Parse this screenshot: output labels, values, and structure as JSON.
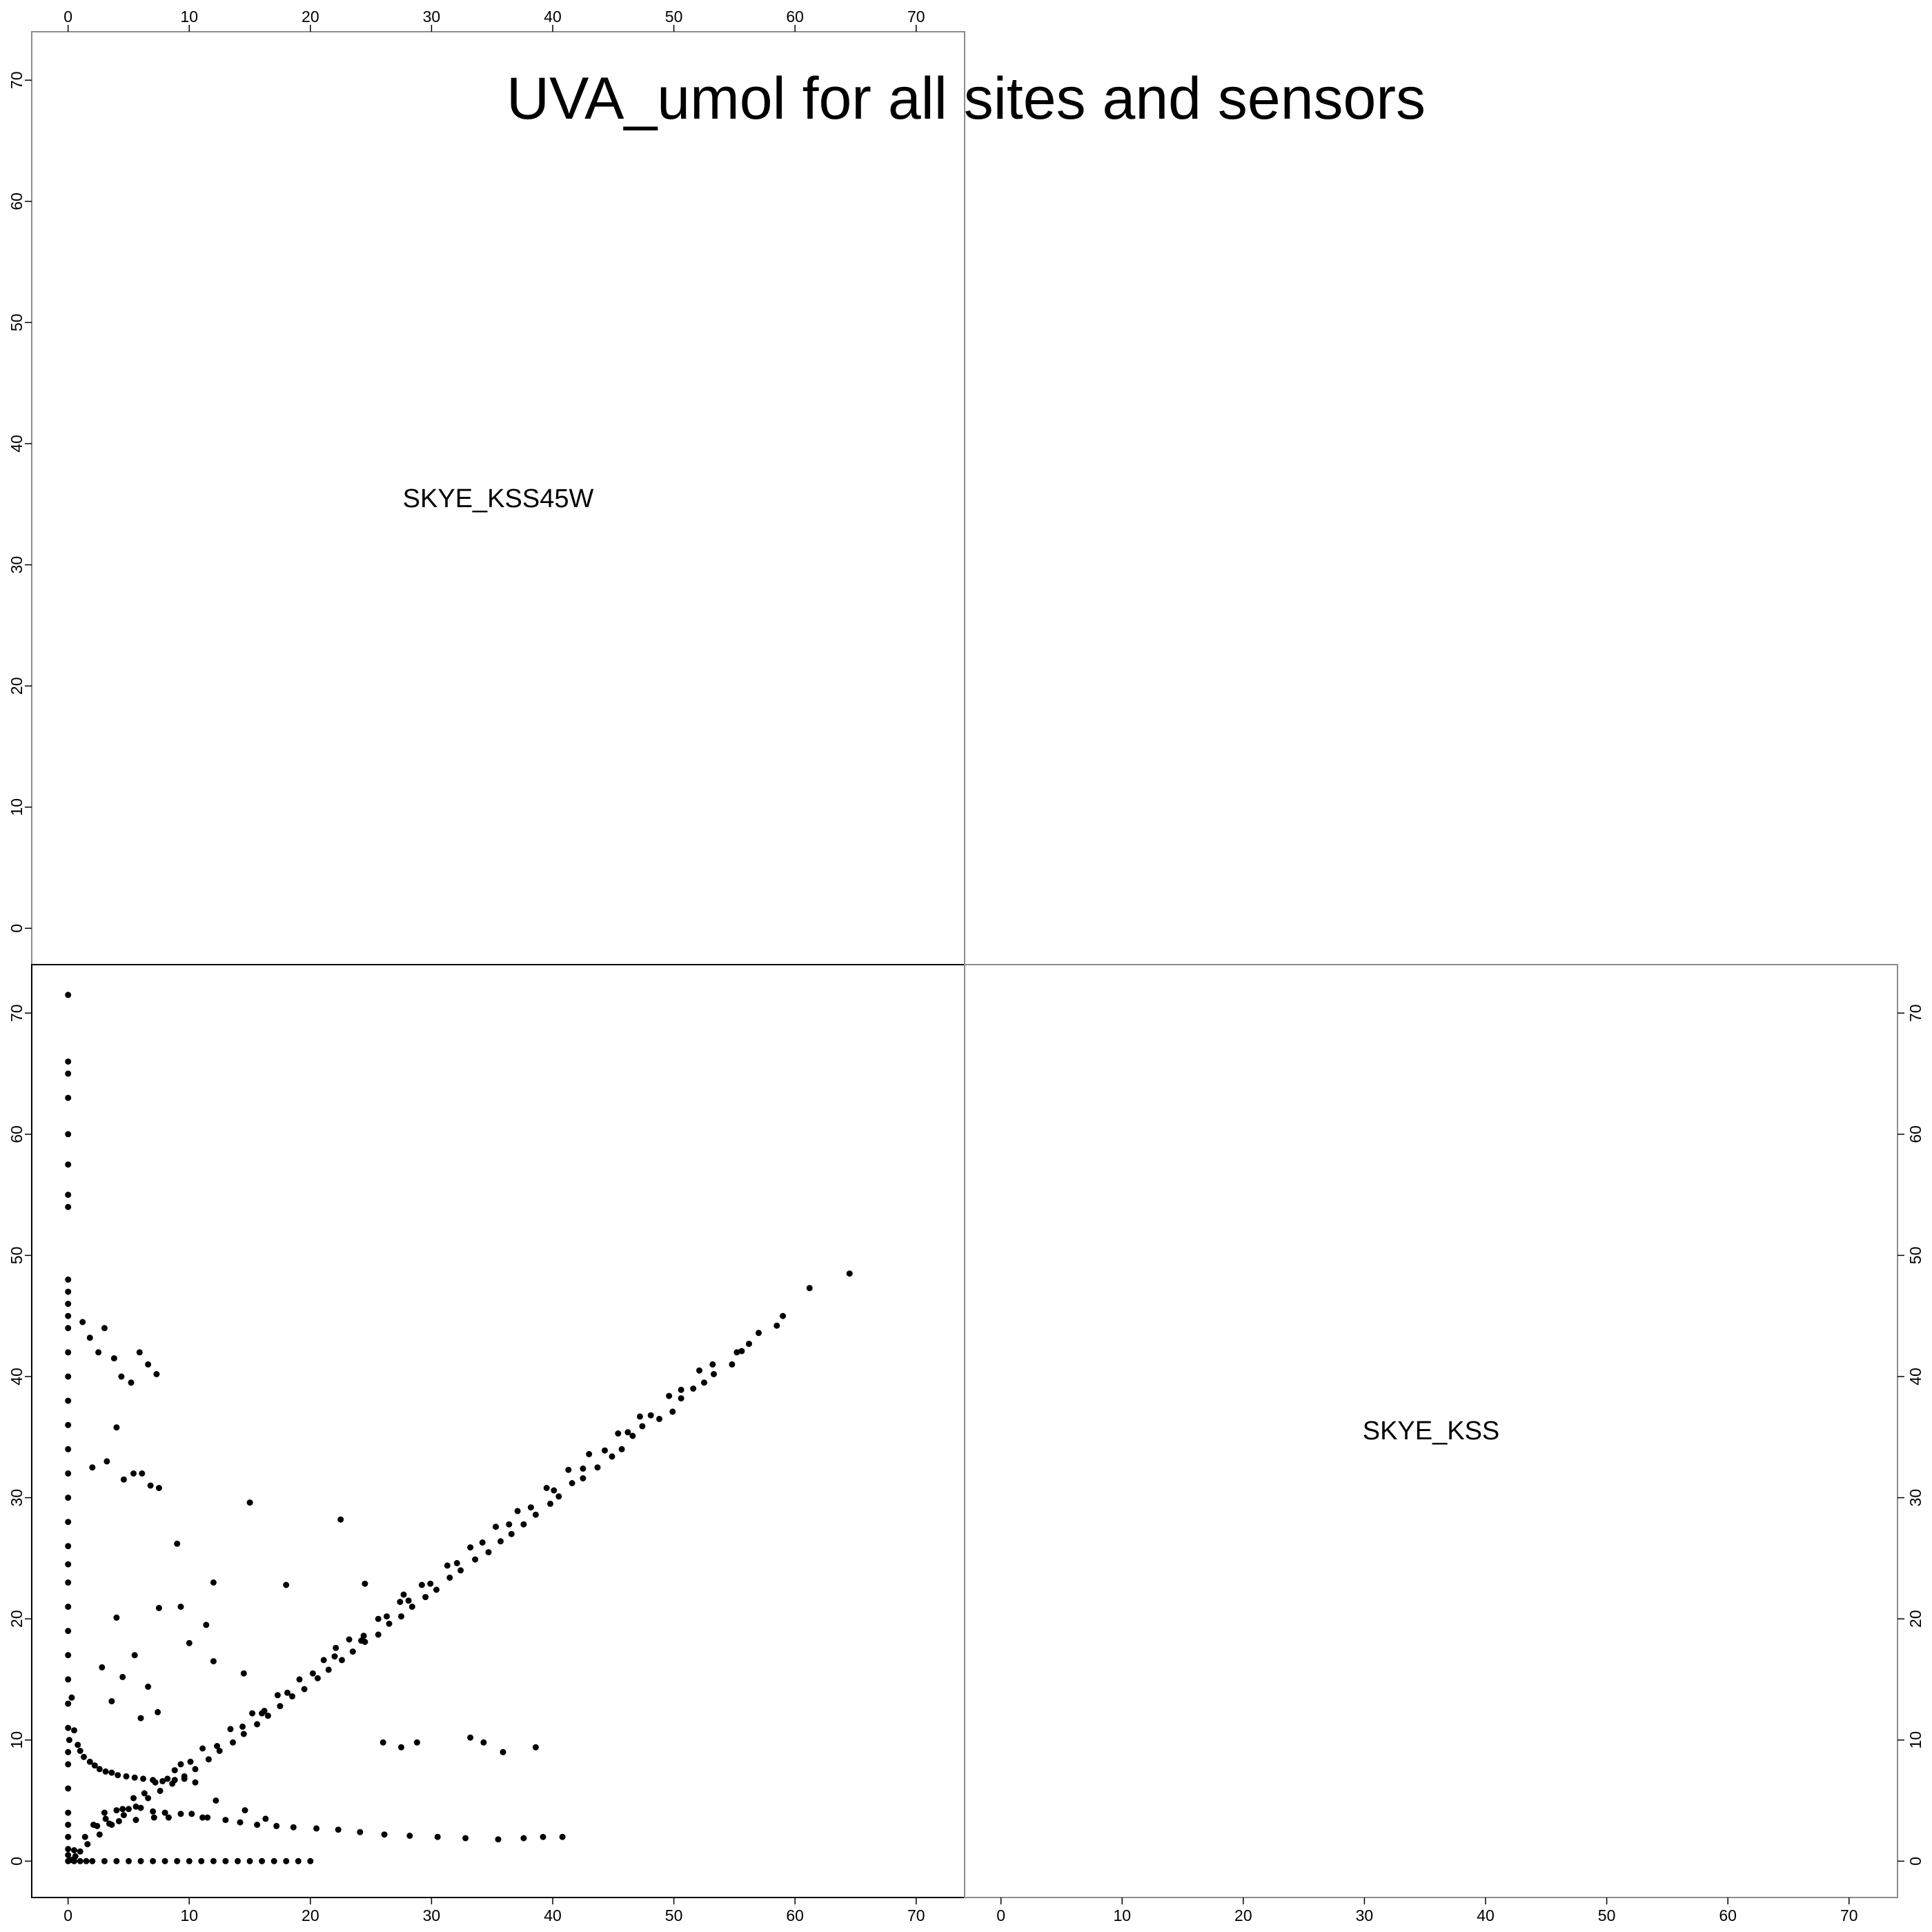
{
  "chart_data": {
    "type": "scatter",
    "title": "UVA_umol for all sites and sensors",
    "layout": "scatterplot-matrix",
    "variables": [
      "SKYE_KSS45W",
      "SKYE_KSS"
    ],
    "axis_range": [
      -3,
      74
    ],
    "ticks": [
      0,
      10,
      20,
      30,
      40,
      50,
      60,
      70
    ],
    "tick_labels": [
      "0",
      "10",
      "20",
      "30",
      "40",
      "50",
      "60",
      "70"
    ],
    "grid": false,
    "panels": [
      {
        "name": "SKYE_KSS (x) vs SKYE_KSS45W (y)",
        "x_variable": "SKYE_KSS",
        "y_variable": "SKYE_KSS45W",
        "point_color": "#000000",
        "x": [
          64.5,
          61.2,
          59.0,
          58.5,
          57.0,
          56.2,
          55.6,
          54.8,
          53.3,
          52.5,
          51.6,
          50.6,
          49.9,
          48.8,
          47.4,
          46.6,
          45.7,
          44.9,
          43.7,
          42.5,
          41.6,
          40.5,
          39.8,
          38.6,
          37.6,
          36.6,
          35.7,
          34.7,
          33.6,
          32.4,
          31.5,
          30.4,
          29.5,
          28.4,
          27.5,
          26.5,
          25.6,
          24.5,
          23.5,
          22.6,
          21.5,
          20.6,
          19.5,
          18.5,
          17.5,
          16.5,
          15.6,
          14.5,
          13.6,
          12.5,
          11.6,
          10.5,
          9.6,
          8.6,
          7.6,
          6.6,
          5.6,
          4.6,
          3.6,
          2.6,
          1.6,
          1.0,
          0.6,
          0.3,
          53.2,
          50.6,
          48.1,
          46.2,
          44.3,
          42.5,
          40.1,
          38.2,
          36.4,
          34.2,
          32.1,
          29.9,
          28.1,
          26.3,
          24.4,
          22.0,
          20.2,
          18.1,
          16.2,
          14.4,
          12.3,
          10.1,
          8.2,
          6.3,
          4.5,
          2.4,
          55.2,
          52.1,
          49.6,
          47.2,
          45.4,
          43.0,
          41.3,
          39.5,
          37.1,
          35.3,
          33.2,
          31.3,
          29.2,
          27.4,
          25.6,
          23.2,
          21.1,
          19.1,
          17.3,
          15.2,
          13.4,
          11.1,
          9.3,
          7.2,
          5.4,
          3.1,
          1.4,
          0.5,
          0.0,
          0.0,
          0.0,
          0.0,
          0.0,
          0.0,
          0.0,
          0.0,
          0.0,
          0.0,
          0.0,
          0.0,
          0.0,
          0.0,
          0.0,
          0.0,
          0.0,
          0.0,
          0.0,
          0.0,
          0.0,
          0.0,
          0.0,
          0.0,
          0.0,
          0.0,
          0.0,
          0.0,
          0.0,
          0.0,
          0.1,
          0.0,
          0.0,
          0.0,
          0.0,
          0.0,
          0.0,
          0.0,
          0.0,
          0.0,
          0.3,
          0.5,
          0.8,
          1.0,
          1.3,
          1.8,
          2.2,
          2.6,
          3.1,
          3.6,
          4.1,
          4.8,
          5.5,
          6.2,
          7.0,
          7.8,
          8.8,
          9.6,
          3.0,
          4.0,
          6.0,
          8.0,
          10.2,
          11.5,
          2.1,
          3.4,
          4.2,
          5.6,
          7.1,
          8.3,
          5.0,
          7.0,
          9.3,
          11.1,
          13.0,
          14.2,
          15.6,
          17.2,
          18.6,
          20.5,
          22.3,
          24.1,
          26.1,
          28.2,
          30.5,
          32.8,
          35.5,
          37.6,
          39.2,
          40.8,
          1.2,
          1.8,
          2.5,
          3.0,
          3.8,
          4.4,
          5.2,
          5.9,
          6.6,
          7.3,
          2.0,
          3.2,
          4.0,
          4.6,
          5.4,
          6.1,
          6.8,
          7.5,
          0.5,
          1.0,
          1.5,
          2.0,
          3.0,
          4.0,
          5.0,
          6.0,
          7.0,
          8.0,
          9.0,
          10.0,
          11.0,
          12.0,
          13.0,
          14.0,
          15.0,
          16.0,
          17.0,
          18.0,
          19.0,
          20.0,
          9.0,
          12.0,
          15.0,
          18.0,
          22.5,
          24.5,
          26.0,
          27.5,
          28.8,
          33.2,
          34.3,
          35.9,
          38.6,
          27.7,
          22.1,
          24.2,
          7.5,
          10.0,
          12.0,
          14.5,
          16.0,
          4.0,
          5.5,
          6.6,
          9.3,
          11.4,
          2.8,
          3.6,
          4.5,
          6.0,
          7.4,
          8.8,
          10.5,
          12.2,
          14.6,
          16.3
        ],
        "y": [
          48.5,
          47.3,
          45.0,
          44.2,
          43.6,
          42.7,
          42.1,
          41.0,
          40.2,
          39.5,
          39.0,
          38.2,
          37.1,
          36.5,
          35.9,
          35.1,
          34.0,
          33.4,
          32.5,
          31.6,
          31.2,
          30.1,
          29.5,
          28.6,
          27.8,
          27.0,
          26.4,
          25.5,
          24.9,
          24.0,
          23.4,
          22.4,
          21.8,
          21.0,
          20.2,
          19.6,
          18.7,
          18.1,
          17.3,
          16.6,
          15.8,
          15.1,
          14.2,
          13.6,
          12.8,
          12.0,
          11.3,
          10.5,
          9.8,
          9.1,
          8.4,
          7.6,
          7.0,
          6.4,
          5.8,
          5.2,
          4.5,
          3.8,
          3.0,
          2.2,
          1.4,
          0.8,
          0.4,
          0.1,
          41.0,
          38.9,
          36.8,
          35.4,
          33.9,
          32.4,
          30.6,
          29.2,
          27.8,
          26.3,
          24.6,
          22.9,
          21.5,
          20.2,
          18.6,
          16.9,
          15.5,
          13.9,
          12.4,
          11.1,
          9.5,
          8.2,
          6.8,
          5.6,
          4.3,
          2.9,
          42.0,
          40.5,
          38.4,
          36.7,
          35.3,
          33.6,
          32.3,
          30.8,
          28.9,
          27.6,
          25.9,
          24.4,
          22.8,
          21.4,
          20.0,
          18.3,
          16.6,
          15.0,
          13.7,
          12.2,
          10.9,
          9.3,
          8.0,
          6.5,
          5.2,
          3.5,
          2.0,
          0.9,
          71.5,
          66.0,
          65.0,
          63.0,
          60.0,
          57.5,
          55.0,
          54.0,
          48.0,
          47.0,
          46.0,
          45.0,
          44.0,
          42.0,
          40.0,
          38.0,
          36.0,
          34.0,
          32.0,
          30.0,
          28.0,
          26.0,
          24.5,
          23.0,
          21.0,
          19.0,
          17.0,
          15.0,
          13.0,
          11.0,
          10.0,
          9.0,
          8.0,
          6.0,
          4.0,
          3.0,
          2.0,
          1.0,
          0.5,
          0.0,
          13.5,
          10.8,
          9.6,
          9.1,
          8.6,
          8.2,
          7.9,
          7.6,
          7.4,
          7.3,
          7.1,
          7.0,
          6.9,
          6.8,
          6.7,
          6.6,
          6.7,
          6.8,
          4.0,
          4.2,
          4.4,
          4.0,
          3.9,
          3.6,
          3.0,
          3.1,
          3.3,
          3.4,
          3.6,
          3.6,
          4.3,
          4.1,
          3.9,
          3.6,
          3.4,
          3.2,
          3.0,
          2.9,
          2.8,
          2.7,
          2.6,
          2.4,
          2.2,
          2.1,
          2.0,
          1.9,
          1.8,
          1.9,
          2.0,
          2.0,
          44.5,
          43.2,
          42.0,
          44.0,
          41.5,
          40.0,
          39.5,
          42.0,
          41.0,
          40.2,
          32.5,
          33.0,
          35.8,
          31.5,
          32.0,
          32.0,
          31.0,
          30.8,
          0.0,
          0.0,
          0.0,
          0.0,
          0.0,
          0.0,
          0.0,
          0.0,
          0.0,
          0.0,
          0.0,
          0.0,
          0.0,
          0.0,
          0.0,
          0.0,
          0.0,
          0.0,
          0.0,
          0.0,
          0.0,
          0.0,
          26.2,
          23.0,
          29.6,
          22.8,
          28.2,
          22.9,
          9.8,
          9.4,
          9.8,
          10.2,
          9.8,
          9.0,
          9.4,
          22.0,
          17.6,
          18.2,
          20.9,
          18.0,
          16.5,
          15.5,
          12.2,
          20.1,
          17.0,
          14.4,
          21.0,
          19.5,
          16.0,
          13.2,
          15.2,
          11.8,
          12.3,
          7.5,
          6.5,
          5.0,
          4.2,
          3.5
        ]
      }
    ],
    "diagonal_labels": [
      "SKYE_KSS45W",
      "SKYE_KSS"
    ]
  }
}
